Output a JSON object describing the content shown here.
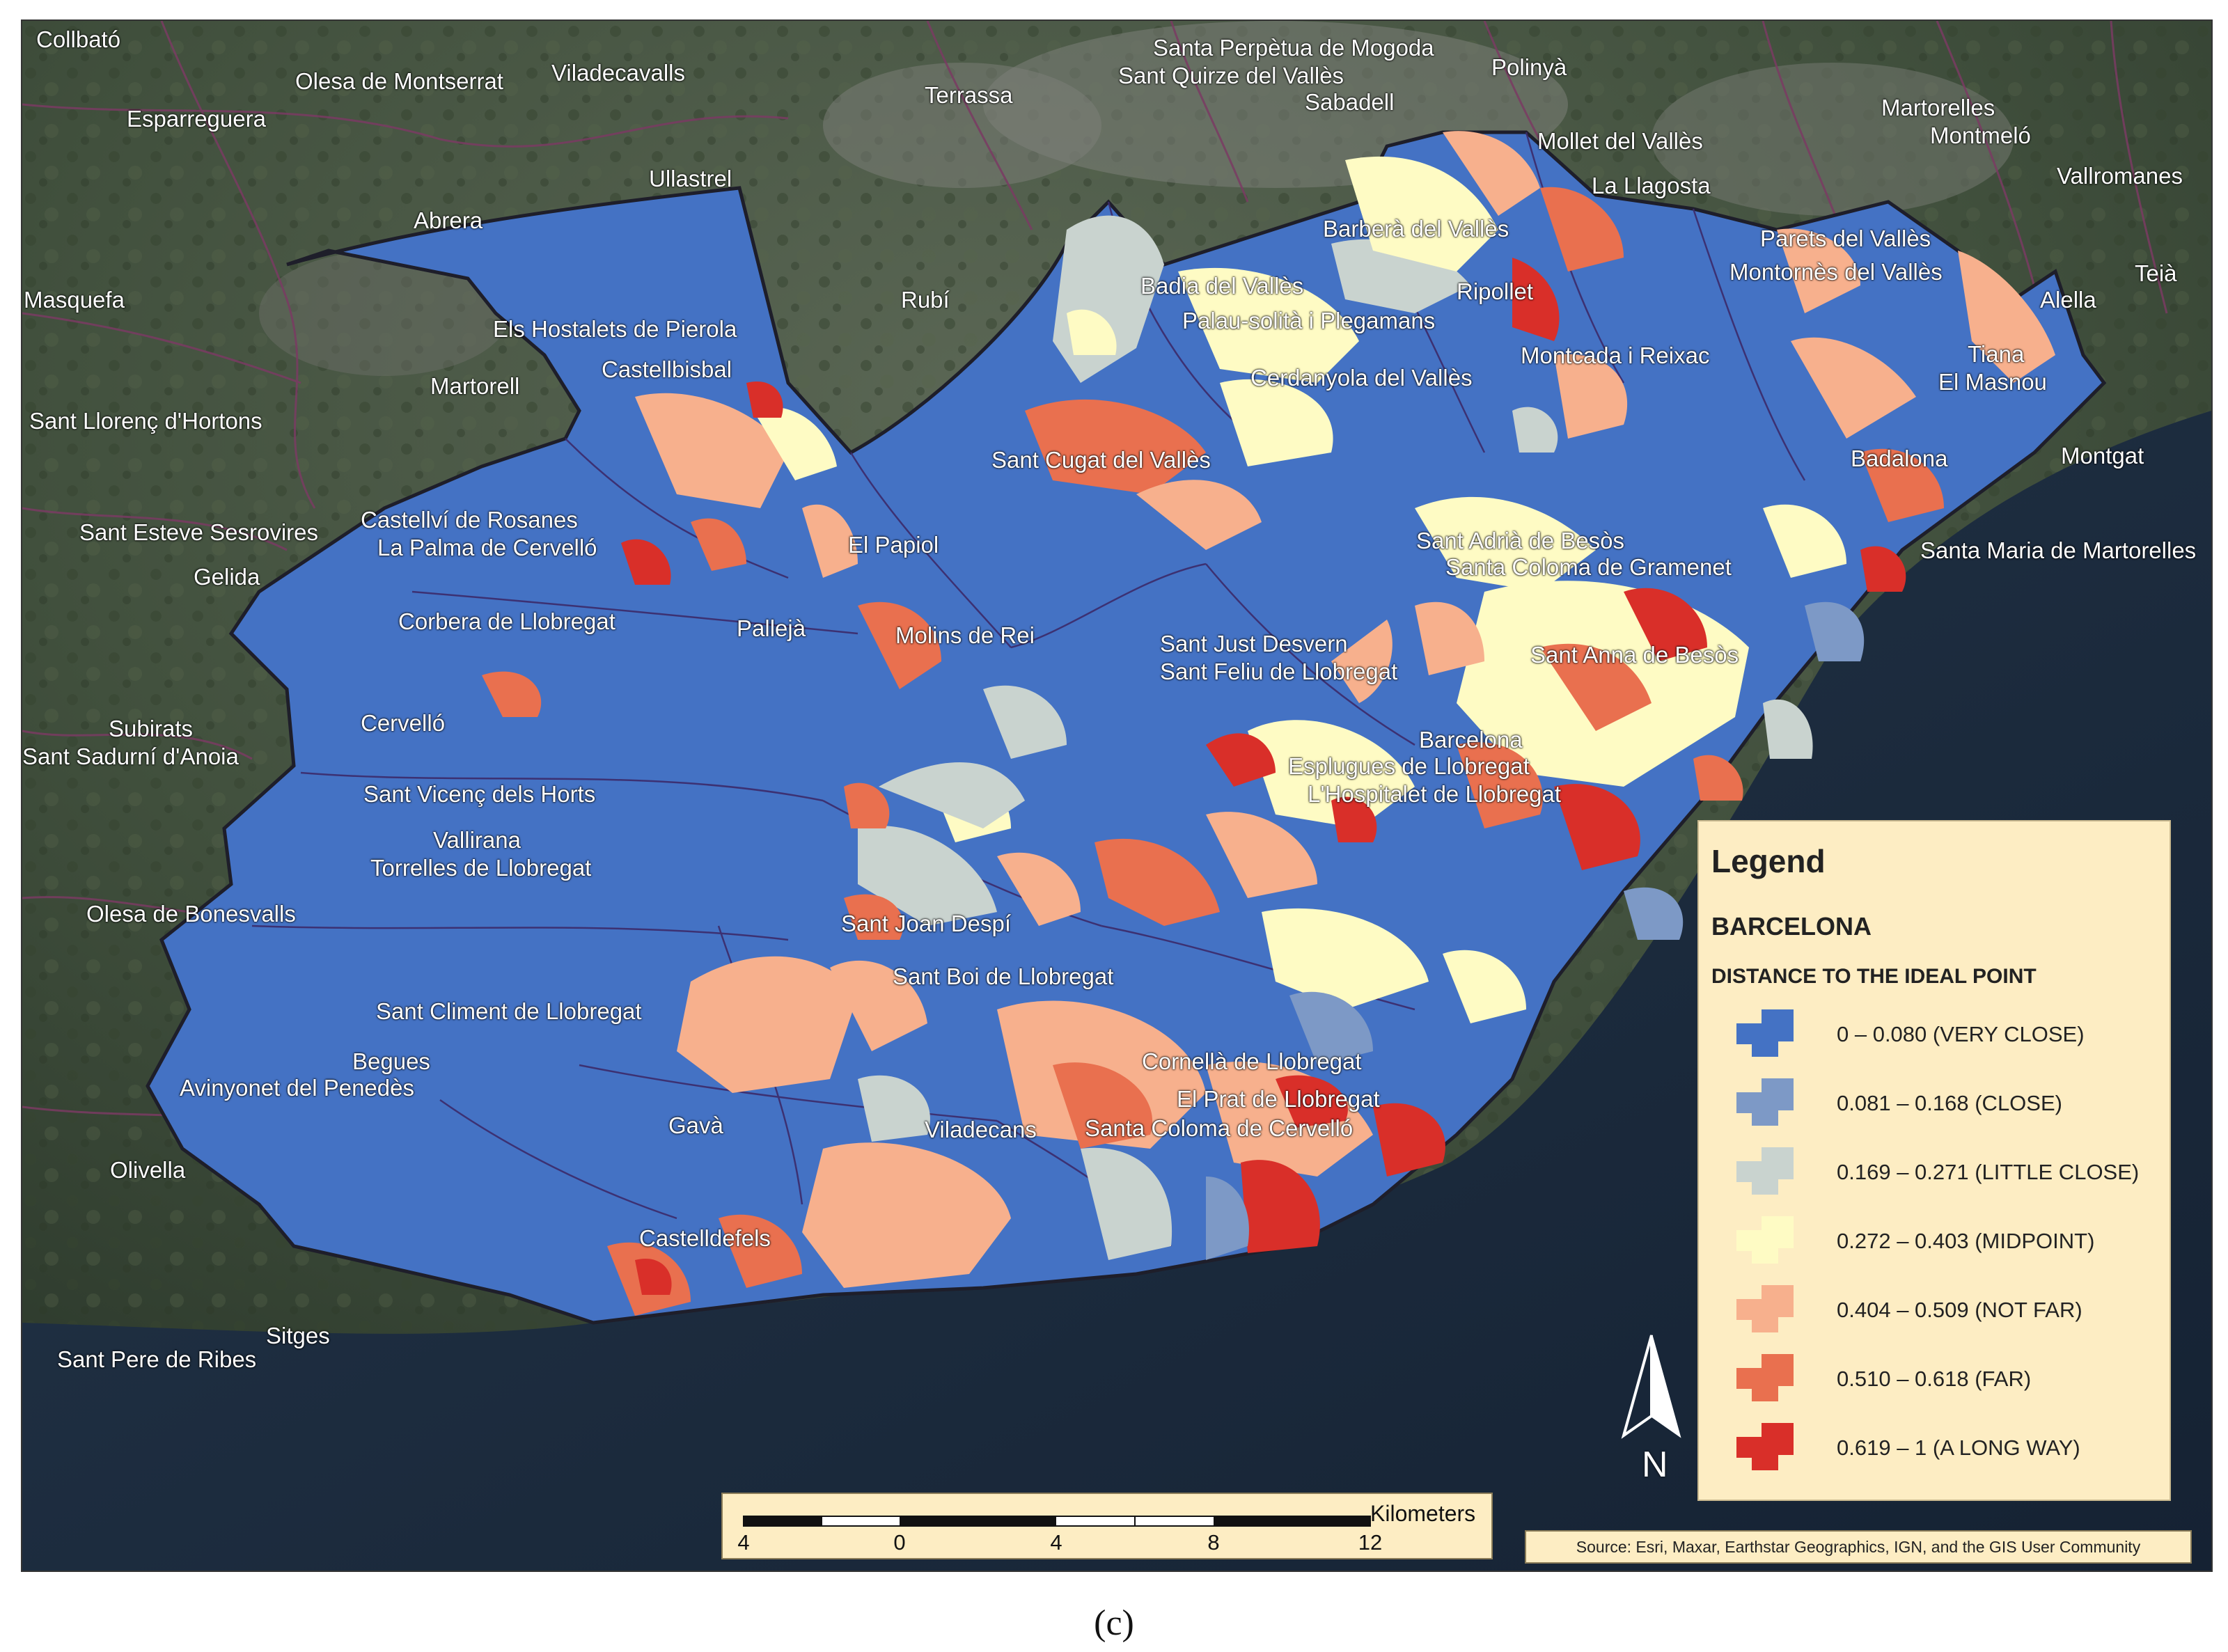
{
  "places": [
    "Collbató",
    "Olesa de Montserrat",
    "Viladecavalls",
    "Esparreguera",
    "Terrassa",
    "Santa Perpètua de Mogoda",
    "Sant Quirze del Vallès",
    "Polinyà",
    "Sabadell",
    "Martorelles",
    "Montmeló",
    "Mollet del Vallès",
    "Vallromanes",
    "La Llagosta",
    "Ullastrel",
    "Abrera",
    "Parets del Vallès",
    "Barberà del Vallès",
    "Montornès del Vallès",
    "Masquefa",
    "Rubí",
    "Badia del Vallès",
    "Ripollet",
    "Teià",
    "Alella",
    "Els Hostalets de Pierola",
    "Palau-solità i Plegamans",
    "Montcada i Reixac",
    "Tiana",
    "Castellbisbal",
    "Martorell",
    "Cerdanyola del Vallès",
    "El Masnou",
    "Sant Llorenç d'Hortons",
    "Sant Cugat del Vallès",
    "Badalona",
    "Montgat",
    "Castellví de Rosanes",
    "Sant Esteve Sesrovires",
    "La Palma de Cervelló",
    "Sant Adrià de Besòs",
    "El Papiol",
    "Santa Maria de Martorelles",
    "Santa Coloma de Gramenet",
    "Gelida",
    "Corbera de Llobregat",
    "Pallejà",
    "Molins de Rei",
    "Sant Just Desvern",
    "Sant Feliu de Llobregat",
    "Sant Anna de Besòs",
    "Subirats",
    "Cervelló",
    "Barcelona",
    "Sant Sadurní d'Anoia",
    "Esplugues de Llobregat",
    "Sant Vicenç dels Horts",
    "L'Hospitalet de Llobregat",
    "Vallirana",
    "Torrelles de Llobregat",
    "Olesa de Bonesvalls",
    "Sant Joan Despí",
    "Sant Boi de Llobregat",
    "Sant Climent de Llobregat",
    "Begues",
    "Cornellà de Llobregat",
    "Avinyonet del Penedès",
    "El Prat de Llobregat",
    "Gavà",
    "Viladecans",
    "Santa Coloma de Cervelló",
    "Olivella",
    "Castelldefels",
    "Sitges",
    "Sant Pere de Ribes"
  ],
  "legend": {
    "title": "Legend",
    "subtitle": "BARCELONA",
    "heading": "DISTANCE TO THE IDEAL POINT",
    "items": [
      {
        "label": "0 – 0.080 (VERY CLOSE)",
        "color": "#4472c4"
      },
      {
        "label": "0.081 – 0.168 (CLOSE)",
        "color": "#7d99c6"
      },
      {
        "label": "0.169 – 0.271 (LITTLE CLOSE)",
        "color": "#c9d3cf"
      },
      {
        "label": "0.272 – 0.403 (MIDPOINT)",
        "color": "#fefbc4"
      },
      {
        "label": "0.404 – 0.509 (NOT FAR)",
        "color": "#f7b08d"
      },
      {
        "label": "0.510 – 0.618 (FAR)",
        "color": "#e9704f"
      },
      {
        "label": "0.619 – 1 (A LONG WAY)",
        "color": "#d92f29"
      }
    ]
  },
  "scale_bar": {
    "unit": "Kilometers",
    "ticks": [
      "4",
      "0",
      "4",
      "8",
      "12"
    ]
  },
  "north_label": "N",
  "source": "Source: Esri, Maxar, Earthstar Geographics, IGN, and the GIS User Community",
  "caption": "(c)"
}
